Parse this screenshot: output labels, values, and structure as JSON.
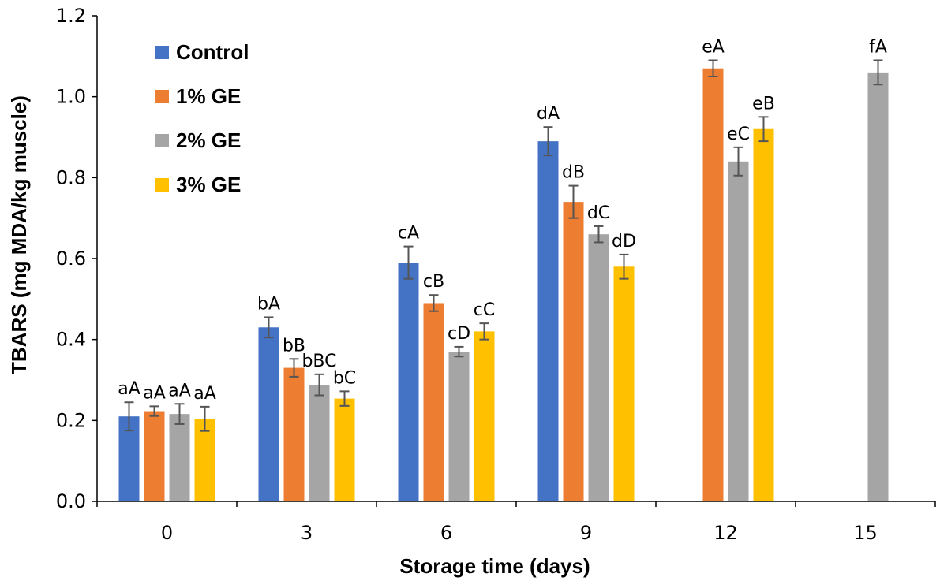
{
  "chart_data": {
    "type": "bar",
    "xlabel": "Storage time (days)",
    "ylabel": "TBARS (mg MDA/kg muscle)",
    "ylim": [
      0,
      1.2
    ],
    "yticks": [
      "0.0",
      "0.2",
      "0.4",
      "0.6",
      "0.8",
      "1.0",
      "1.2"
    ],
    "categories": [
      "0",
      "3",
      "6",
      "9",
      "12",
      "15"
    ],
    "legend_position": "top-left",
    "grid": false,
    "series": [
      {
        "name": "Control",
        "color": "#4472C4",
        "values": [
          0.21,
          0.43,
          0.59,
          0.89,
          null,
          null
        ],
        "errors": [
          0.035,
          0.025,
          0.04,
          0.035,
          null,
          null
        ],
        "labels": [
          "aA",
          "bA",
          "cA",
          "dA",
          null,
          null
        ]
      },
      {
        "name": "1% GE",
        "color": "#ED7D31",
        "values": [
          0.223,
          0.33,
          0.49,
          0.74,
          1.07,
          null
        ],
        "errors": [
          0.012,
          0.022,
          0.02,
          0.04,
          0.02,
          null
        ],
        "labels": [
          "aA",
          "bB",
          "cB",
          "dB",
          "eA",
          null
        ]
      },
      {
        "name": "2% GE",
        "color": "#A5A5A5",
        "values": [
          0.216,
          0.288,
          0.37,
          0.66,
          0.84,
          1.06
        ],
        "errors": [
          0.025,
          0.026,
          0.012,
          0.02,
          0.035,
          0.03
        ],
        "labels": [
          "aA",
          "bBC",
          "cD",
          "dC",
          "eC",
          "fA"
        ]
      },
      {
        "name": "3% GE",
        "color": "#FFC000",
        "values": [
          0.204,
          0.254,
          0.42,
          0.58,
          0.92,
          null
        ],
        "errors": [
          0.03,
          0.018,
          0.02,
          0.03,
          0.03,
          null
        ],
        "labels": [
          "aA",
          "bC",
          "cC",
          "dD",
          "eB",
          null
        ]
      }
    ]
  }
}
